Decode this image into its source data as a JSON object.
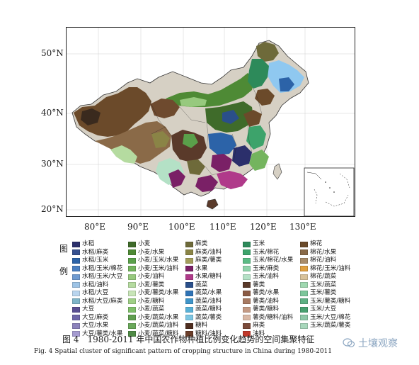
{
  "map": {
    "lat_labels": [
      "50°N",
      "40°N",
      "30°N",
      "20°N"
    ],
    "lon_labels": [
      "80°E",
      "90°E",
      "100°E",
      "110°E",
      "120°E",
      "130°E"
    ],
    "has_inset": true
  },
  "legend": {
    "title": "图例",
    "columns": [
      [
        {
          "label": "水稻",
          "color": "#2b2f6b"
        },
        {
          "label": "水稻/麻类",
          "color": "#36508f"
        },
        {
          "label": "水稻/玉米",
          "color": "#2c63a8"
        },
        {
          "label": "水稻/玉米/棉花",
          "color": "#4a7fc1"
        },
        {
          "label": "水稻/玉米/大豆",
          "color": "#6f9bd1"
        },
        {
          "label": "水稻/油料",
          "color": "#9ec4e6"
        },
        {
          "label": "水稻/大豆",
          "color": "#b9d5ee"
        },
        {
          "label": "水稻/大豆/麻类",
          "color": "#7fb5c8"
        },
        {
          "label": "大豆",
          "color": "#5a4f92"
        },
        {
          "label": "大豆/麻类",
          "color": "#6e66a8"
        },
        {
          "label": "大豆/水果",
          "color": "#8c82bc"
        },
        {
          "label": "大豆/薯类/水果",
          "color": "#a59bd0"
        }
      ],
      [
        {
          "label": "小麦",
          "color": "#3f6b2a"
        },
        {
          "label": "小麦/水果",
          "color": "#4e8a35"
        },
        {
          "label": "小麦/玉米/水果",
          "color": "#5aa04a"
        },
        {
          "label": "小麦/玉米/油料",
          "color": "#74b45e"
        },
        {
          "label": "小麦/油料",
          "color": "#97c97e"
        },
        {
          "label": "小麦/薯类",
          "color": "#b5dba0"
        },
        {
          "label": "小麦/薯类/水果",
          "color": "#c8e5b8"
        },
        {
          "label": "小麦/糖料",
          "color": "#9fcf86"
        },
        {
          "label": "小麦/蔬菜",
          "color": "#7fbf6a"
        },
        {
          "label": "小麦/蔬菜/水果",
          "color": "#5f9e4f"
        },
        {
          "label": "小麦/蔬菜/油料",
          "color": "#6aa95a"
        },
        {
          "label": "小麦/蔬菜/糖料",
          "color": "#4f8a45"
        }
      ],
      [
        {
          "label": "麻类",
          "color": "#6e6a3a"
        },
        {
          "label": "麻类/油料",
          "color": "#8a8446"
        },
        {
          "label": "麻类/薯类",
          "color": "#a39d5c"
        },
        {
          "label": "水果",
          "color": "#7a2066"
        },
        {
          "label": "水果/糖料",
          "color": "#b03a8a"
        },
        {
          "label": "蔬菜",
          "color": "#2a4f8a"
        },
        {
          "label": "蔬菜/水果",
          "color": "#2f73b5"
        },
        {
          "label": "蔬菜/油料",
          "color": "#3f95c9"
        },
        {
          "label": "蔬菜/糖料",
          "color": "#58b0d6"
        },
        {
          "label": "蔬菜/薯类",
          "color": "#7cc5e2"
        },
        {
          "label": "糖料",
          "color": "#4e2d1f"
        },
        {
          "label": "糖料/油料",
          "color": "#6b3e2a"
        }
      ],
      [
        {
          "label": "玉米",
          "color": "#2d8a5a"
        },
        {
          "label": "玉米/棉花",
          "color": "#3da36b"
        },
        {
          "label": "玉米/棉花/水果",
          "color": "#5bbb84"
        },
        {
          "label": "玉米/麻类",
          "color": "#8fd3aa"
        },
        {
          "label": "玉米/油料",
          "color": "#b4e1c6"
        },
        {
          "label": "薯类",
          "color": "#5a3a2a"
        },
        {
          "label": "薯类/水果",
          "color": "#8a5a44"
        },
        {
          "label": "薯类/油料",
          "color": "#a77a62"
        },
        {
          "label": "薯类/糖料",
          "color": "#c49a84"
        },
        {
          "label": "薯类/糖料/油料",
          "color": "#d9b8a5"
        },
        {
          "label": "麻类",
          "color": "#7b4a3a"
        },
        {
          "label": "油料",
          "color": "#c0392b"
        }
      ],
      [
        {
          "label": "棉花",
          "color": "#6b4a2a"
        },
        {
          "label": "棉花/水果",
          "color": "#8a6a48"
        },
        {
          "label": "棉花/油料",
          "color": "#a98c6a"
        },
        {
          "label": "棉花/玉米/油料",
          "color": "#e0a040"
        },
        {
          "label": "棉花/蔬菜",
          "color": "#d8c29a"
        },
        {
          "label": "玉米/蔬菜",
          "color": "#9fd8b0"
        },
        {
          "label": "玉米/薯类",
          "color": "#7cc69a"
        },
        {
          "label": "玉米/薯类/糖料",
          "color": "#5eb184"
        },
        {
          "label": "玉米/大豆",
          "color": "#48a070"
        },
        {
          "label": "玉米/大豆/棉花",
          "color": "#8fc8a8"
        },
        {
          "label": "玉米/蔬菜/薯类",
          "color": "#a8d8bc"
        }
      ]
    ]
  },
  "captions": {
    "zh": "图 4　1980-2011 年中国农作物种植比例变化趋势的空间集聚特征",
    "en": "Fig. 4   Spatial cluster of significant pattern of cropping structure in China during 1980-2011"
  },
  "watermark": {
    "text": "土壤观察"
  },
  "colors": {
    "rice": "#2b2f6b",
    "wheat": "#3f6b2a",
    "hemp": "#6e6a3a",
    "corn": "#2d8a5a",
    "cotton": "#6b4a2a",
    "fruit": "#7a2066",
    "veg": "#2a4f8a",
    "ne_lightblue": "#8fc8f0"
  }
}
